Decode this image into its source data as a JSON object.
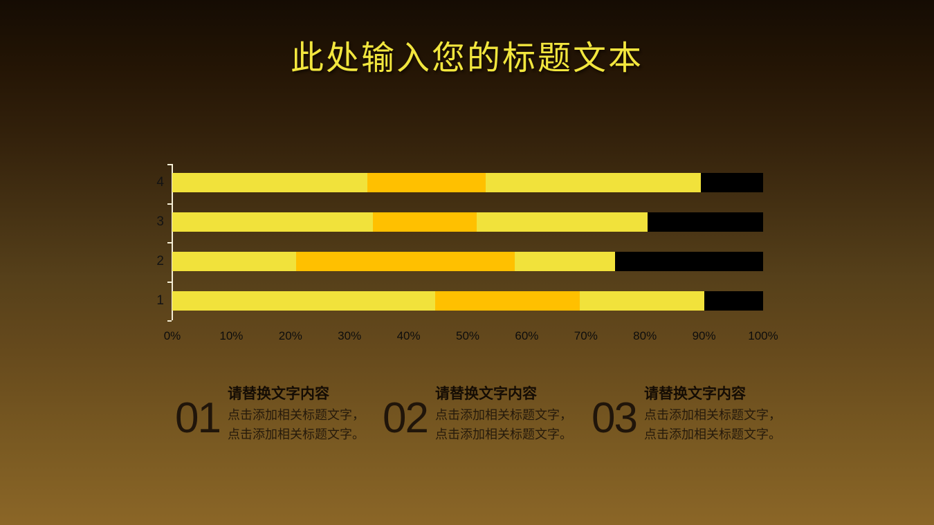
{
  "title": "此处输入您的标题文本",
  "colors": {
    "background_top": "#150C03",
    "background_bottom": "#8B6627",
    "title": "#F2E63E",
    "axis_line": "#F5EED6",
    "tick_text": "#0D0D0D",
    "note_text": "#261A0B"
  },
  "chart_data": {
    "type": "bar",
    "subtype": "horizontal-stacked-100pct",
    "title": "",
    "xlabel": "",
    "ylabel": "",
    "xlim": [
      0,
      100
    ],
    "grid": false,
    "legend": false,
    "categories": [
      "4",
      "3",
      "2",
      "1"
    ],
    "series": [
      {
        "name": "segment-1-yellow",
        "color": "#F1E23B",
        "values": [
          33,
          34,
          21,
          44.5
        ]
      },
      {
        "name": "segment-2-orange",
        "color": "#FFC000",
        "values": [
          20,
          17.5,
          37,
          24.5
        ]
      },
      {
        "name": "segment-3-yellow",
        "color": "#F1E23B",
        "values": [
          36.5,
          29,
          17,
          21
        ]
      },
      {
        "name": "segment-4-black",
        "color": "#000000",
        "values": [
          10.5,
          19.5,
          25,
          10
        ]
      }
    ],
    "x_ticks": [
      "0%",
      "10%",
      "20%",
      "30%",
      "40%",
      "50%",
      "60%",
      "70%",
      "80%",
      "90%",
      "100%"
    ]
  },
  "notes": [
    {
      "number": "01",
      "heading": "请替换文字内容",
      "line1": "点击添加相关标题文字，",
      "line2": "点击添加相关标题文字。"
    },
    {
      "number": "02",
      "heading": "请替换文字内容",
      "line1": "点击添加相关标题文字，",
      "line2": "点击添加相关标题文字。"
    },
    {
      "number": "03",
      "heading": "请替换文字内容",
      "line1": "点击添加相关标题文字，",
      "line2": "点击添加相关标题文字。"
    }
  ]
}
